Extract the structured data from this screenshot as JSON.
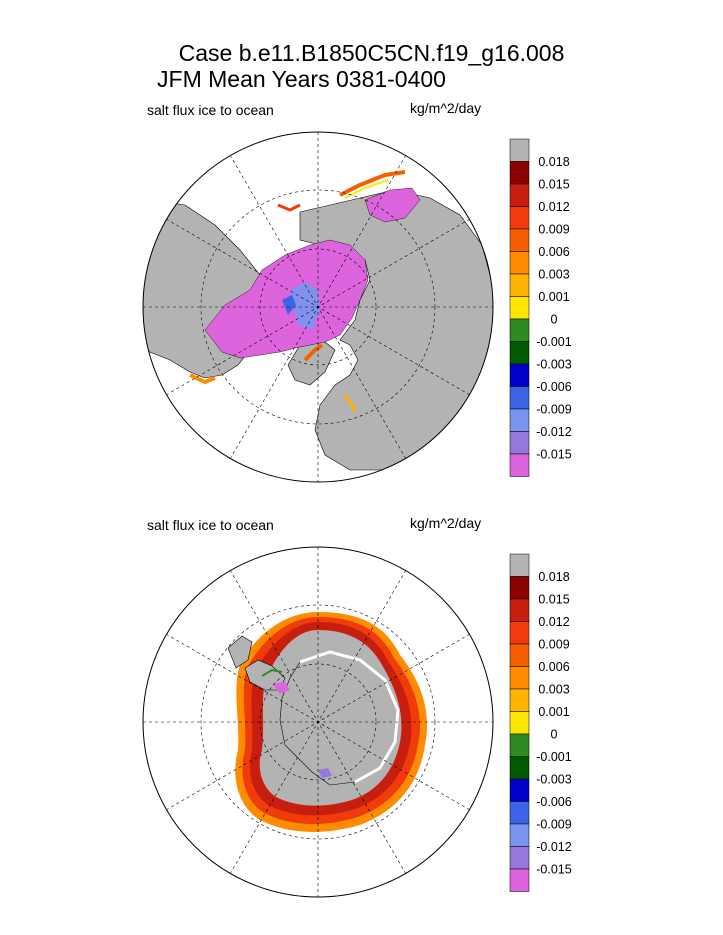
{
  "title_line1": "Case b.e11.B1850C5CN.f19_g16.008",
  "title_line2": "JFM Mean     Years 0381-0400",
  "colorbar": {
    "labels": [
      "0.018",
      "0.015",
      "0.012",
      "0.009",
      "0.006",
      "0.003",
      "0.001",
      "0",
      "-0.001",
      "-0.003",
      "-0.006",
      "-0.009",
      "-0.012",
      "-0.015"
    ],
    "colors": [
      "#b3b3b3",
      "#8b0000",
      "#c81e0f",
      "#f03c0a",
      "#f55f00",
      "#ff8c00",
      "#ffb400",
      "#ffe600",
      "#2e8b22",
      "#005a00",
      "#0000c8",
      "#3c64e6",
      "#7896f0",
      "#9478dc",
      "#dc64dc"
    ]
  },
  "chart_data": [
    {
      "type": "heatmap",
      "hemisphere": "north",
      "variable_label": "salt flux ice to ocean",
      "units": "kg/m^2/day",
      "projection": "polar stereographic",
      "land_color": "#b3b3b3",
      "levels": [
        0.018,
        0.015,
        0.012,
        0.009,
        0.006,
        0.003,
        0.001,
        0,
        -0.001,
        -0.003,
        -0.006,
        -0.009,
        -0.012,
        -0.015
      ]
    },
    {
      "type": "heatmap",
      "hemisphere": "south",
      "variable_label": "salt flux ice to ocean",
      "units": "kg/m^2/day",
      "projection": "polar stereographic",
      "land_color": "#b3b3b3",
      "levels": [
        0.018,
        0.015,
        0.012,
        0.009,
        0.006,
        0.003,
        0.001,
        0,
        -0.001,
        -0.003,
        -0.006,
        -0.009,
        -0.012,
        -0.015
      ]
    }
  ]
}
